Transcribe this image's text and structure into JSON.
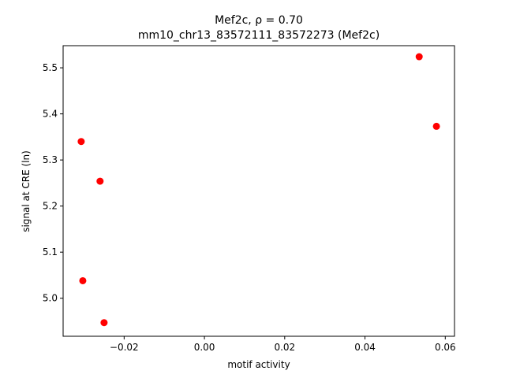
{
  "chart_data": {
    "type": "scatter",
    "title": "Mef2c, ρ = 0.70",
    "subtitle": "mm10_chr13_83572111_83572273 (Mef2c)",
    "x_label": "motif activity",
    "y_label": "signal at CRE (ln)",
    "x": [
      -0.0307,
      -0.0303,
      -0.026,
      -0.025,
      0.0535,
      0.0578
    ],
    "values": [
      5.34,
      5.038,
      5.254,
      4.947,
      5.524,
      5.373
    ],
    "color": "#ff0000",
    "xlim": [
      -0.0352,
      0.0623
    ],
    "ylim": [
      4.9175,
      5.548
    ],
    "xticks": [
      {
        "value": -0.02,
        "label": "−0.02"
      },
      {
        "value": 0,
        "label": "0.00"
      },
      0.02,
      0.04,
      0.06
    ],
    "yticks": [
      {
        "value": 5.0,
        "label": "5.0"
      },
      5.1,
      5.2,
      5.3,
      5.4,
      5.5
    ],
    "grid": false
  }
}
